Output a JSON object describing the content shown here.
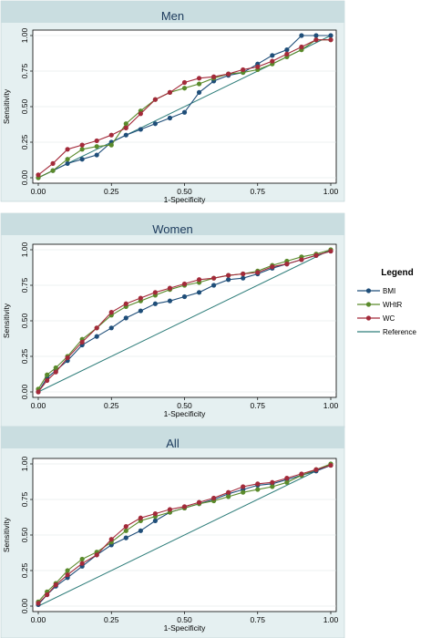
{
  "colors": {
    "panel_bg": "#e5f0f1",
    "title_bar_bg": "#c9dde0",
    "title_color": "#1c3a5c",
    "plot_bg": "#ffffff",
    "frame": "#000000",
    "grid": "#d9e3e6"
  },
  "legend": {
    "title": "Legend",
    "items": [
      {
        "label": "BMI",
        "color": "#1f4e79"
      },
      {
        "label": "WHtR",
        "color": "#5a8a2b"
      },
      {
        "label": "WC",
        "color": "#a32a3a"
      },
      {
        "label": "Reference",
        "color": "#2e7d7a"
      }
    ]
  },
  "chart_data": [
    {
      "type": "line",
      "title": "Men",
      "xlabel": "1-Specificity",
      "ylabel": "Sensitivity",
      "xlim": [
        0,
        1
      ],
      "ylim": [
        0,
        1
      ],
      "x_ticks": [
        "0.00",
        "0.25",
        "0.50",
        "0.75",
        "1.00"
      ],
      "y_ticks": [
        "0.00",
        "0.25",
        "0.50",
        "0.75",
        "1.00"
      ],
      "grid": true,
      "series": [
        {
          "name": "BMI",
          "color": "#1f4e79",
          "x": [
            0,
            0.05,
            0.1,
            0.15,
            0.2,
            0.25,
            0.3,
            0.35,
            0.4,
            0.45,
            0.5,
            0.55,
            0.6,
            0.65,
            0.7,
            0.75,
            0.8,
            0.85,
            0.9,
            0.95,
            1.0
          ],
          "y": [
            0,
            0.05,
            0.1,
            0.13,
            0.16,
            0.25,
            0.3,
            0.34,
            0.38,
            0.42,
            0.46,
            0.6,
            0.68,
            0.72,
            0.74,
            0.8,
            0.86,
            0.9,
            1.0,
            1.0,
            1.0
          ]
        },
        {
          "name": "WHtR",
          "color": "#5a8a2b",
          "x": [
            0,
            0.05,
            0.1,
            0.15,
            0.2,
            0.25,
            0.3,
            0.35,
            0.4,
            0.45,
            0.5,
            0.55,
            0.6,
            0.65,
            0.7,
            0.75,
            0.8,
            0.85,
            0.9,
            0.95,
            1.0
          ],
          "y": [
            0,
            0.05,
            0.13,
            0.2,
            0.22,
            0.23,
            0.38,
            0.47,
            0.55,
            0.6,
            0.63,
            0.66,
            0.7,
            0.73,
            0.74,
            0.76,
            0.8,
            0.85,
            0.9,
            0.97,
            0.97
          ]
        },
        {
          "name": "WC",
          "color": "#a32a3a",
          "x": [
            0,
            0.05,
            0.1,
            0.15,
            0.2,
            0.25,
            0.3,
            0.35,
            0.4,
            0.45,
            0.5,
            0.55,
            0.6,
            0.65,
            0.7,
            0.75,
            0.8,
            0.85,
            0.9,
            0.95,
            1.0
          ],
          "y": [
            0.02,
            0.1,
            0.2,
            0.23,
            0.26,
            0.3,
            0.35,
            0.45,
            0.55,
            0.6,
            0.67,
            0.7,
            0.71,
            0.73,
            0.76,
            0.78,
            0.82,
            0.87,
            0.92,
            0.97,
            0.97
          ]
        },
        {
          "name": "Reference",
          "color": "#2e7d7a",
          "x": [
            0,
            1
          ],
          "y": [
            0,
            1
          ]
        }
      ]
    },
    {
      "type": "line",
      "title": "Women",
      "xlabel": "1-Specificity",
      "ylabel": "Sensitivity",
      "xlim": [
        0,
        1
      ],
      "ylim": [
        0,
        1
      ],
      "x_ticks": [
        "0.00",
        "0.25",
        "0.50",
        "0.75",
        "1.00"
      ],
      "y_ticks": [
        "0.00",
        "0.25",
        "0.50",
        "0.75",
        "1.00"
      ],
      "grid": true,
      "series": [
        {
          "name": "BMI",
          "color": "#1f4e79",
          "x": [
            0,
            0.03,
            0.06,
            0.1,
            0.15,
            0.2,
            0.25,
            0.3,
            0.35,
            0.4,
            0.45,
            0.5,
            0.55,
            0.6,
            0.65,
            0.7,
            0.75,
            0.8,
            0.85,
            0.9,
            0.95,
            1.0
          ],
          "y": [
            0,
            0.1,
            0.15,
            0.22,
            0.33,
            0.39,
            0.45,
            0.52,
            0.57,
            0.62,
            0.64,
            0.67,
            0.7,
            0.75,
            0.79,
            0.8,
            0.83,
            0.87,
            0.9,
            0.93,
            0.96,
            0.99
          ]
        },
        {
          "name": "WHtR",
          "color": "#5a8a2b",
          "x": [
            0,
            0.03,
            0.06,
            0.1,
            0.15,
            0.2,
            0.25,
            0.3,
            0.35,
            0.4,
            0.45,
            0.5,
            0.55,
            0.6,
            0.65,
            0.7,
            0.75,
            0.8,
            0.85,
            0.9,
            0.95,
            1.0
          ],
          "y": [
            0.02,
            0.12,
            0.17,
            0.25,
            0.37,
            0.45,
            0.54,
            0.6,
            0.64,
            0.68,
            0.72,
            0.75,
            0.77,
            0.8,
            0.82,
            0.83,
            0.85,
            0.89,
            0.92,
            0.95,
            0.97,
            1.0
          ]
        },
        {
          "name": "WC",
          "color": "#a32a3a",
          "x": [
            0,
            0.03,
            0.06,
            0.1,
            0.15,
            0.2,
            0.25,
            0.3,
            0.35,
            0.4,
            0.45,
            0.5,
            0.55,
            0.6,
            0.65,
            0.7,
            0.75,
            0.8,
            0.85,
            0.9,
            0.95,
            1.0
          ],
          "y": [
            0,
            0.08,
            0.14,
            0.24,
            0.35,
            0.45,
            0.56,
            0.62,
            0.66,
            0.7,
            0.73,
            0.76,
            0.79,
            0.8,
            0.82,
            0.83,
            0.84,
            0.88,
            0.9,
            0.93,
            0.96,
            0.99
          ]
        },
        {
          "name": "Reference",
          "color": "#2e7d7a",
          "x": [
            0,
            1
          ],
          "y": [
            0,
            1
          ]
        }
      ]
    },
    {
      "type": "line",
      "title": "All",
      "xlabel": "1-Specificity",
      "ylabel": "Sensitivity",
      "xlim": [
        0,
        1
      ],
      "ylim": [
        0,
        1
      ],
      "x_ticks": [
        "0.00",
        "0.25",
        "0.50",
        "0.75",
        "1.00"
      ],
      "y_ticks": [
        "0.00",
        "0.25",
        "0.50",
        "0.75",
        "1.00"
      ],
      "grid": true,
      "series": [
        {
          "name": "BMI",
          "color": "#1f4e79",
          "x": [
            0,
            0.03,
            0.06,
            0.1,
            0.15,
            0.2,
            0.25,
            0.3,
            0.35,
            0.4,
            0.45,
            0.5,
            0.55,
            0.6,
            0.65,
            0.7,
            0.75,
            0.8,
            0.85,
            0.9,
            0.95,
            1.0
          ],
          "y": [
            0.01,
            0.08,
            0.14,
            0.2,
            0.28,
            0.36,
            0.43,
            0.48,
            0.53,
            0.6,
            0.66,
            0.69,
            0.72,
            0.75,
            0.79,
            0.82,
            0.85,
            0.86,
            0.89,
            0.92,
            0.95,
            0.99
          ]
        },
        {
          "name": "WHtR",
          "color": "#5a8a2b",
          "x": [
            0,
            0.03,
            0.06,
            0.1,
            0.15,
            0.2,
            0.25,
            0.3,
            0.35,
            0.4,
            0.45,
            0.5,
            0.55,
            0.6,
            0.65,
            0.7,
            0.75,
            0.8,
            0.85,
            0.9,
            0.95,
            1.0
          ],
          "y": [
            0.03,
            0.1,
            0.16,
            0.25,
            0.33,
            0.38,
            0.45,
            0.53,
            0.6,
            0.63,
            0.66,
            0.69,
            0.72,
            0.74,
            0.77,
            0.8,
            0.82,
            0.84,
            0.87,
            0.92,
            0.96,
            1.0
          ]
        },
        {
          "name": "WC",
          "color": "#a32a3a",
          "x": [
            0,
            0.03,
            0.06,
            0.1,
            0.15,
            0.2,
            0.25,
            0.3,
            0.35,
            0.4,
            0.45,
            0.5,
            0.55,
            0.6,
            0.65,
            0.7,
            0.75,
            0.8,
            0.85,
            0.9,
            0.95,
            1.0
          ],
          "y": [
            0.02,
            0.08,
            0.15,
            0.22,
            0.3,
            0.36,
            0.47,
            0.56,
            0.62,
            0.65,
            0.68,
            0.7,
            0.73,
            0.76,
            0.8,
            0.84,
            0.86,
            0.87,
            0.9,
            0.93,
            0.96,
            0.99
          ]
        },
        {
          "name": "Reference",
          "color": "#2e7d7a",
          "x": [
            0,
            1
          ],
          "y": [
            0,
            1
          ]
        }
      ]
    }
  ]
}
